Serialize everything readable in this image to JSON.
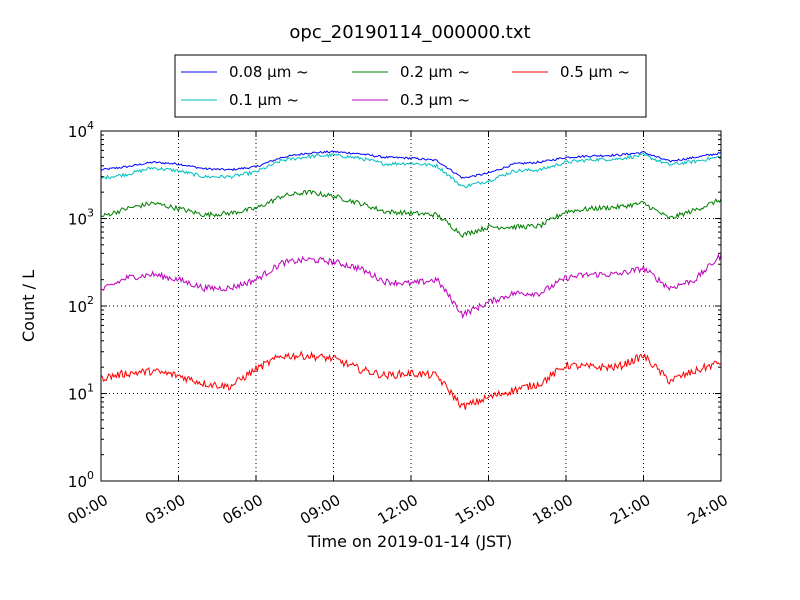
{
  "chart_data": {
    "type": "line",
    "title": "opc_20190114_000000.txt",
    "xlabel": "Time on 2019-01-14 (JST)",
    "ylabel": "Count / L",
    "y_scale": "log",
    "ylim": [
      1,
      10000
    ],
    "xlim": [
      "00:00",
      "24:00"
    ],
    "x_ticks": [
      "00:00",
      "03:00",
      "06:00",
      "09:00",
      "12:00",
      "15:00",
      "18:00",
      "21:00",
      "24:00"
    ],
    "y_ticks": [
      {
        "value": 1,
        "base": "10",
        "exp": "0"
      },
      {
        "value": 10,
        "base": "10",
        "exp": "1"
      },
      {
        "value": 100,
        "base": "10",
        "exp": "2"
      },
      {
        "value": 1000,
        "base": "10",
        "exp": "3"
      },
      {
        "value": 10000,
        "base": "10",
        "exp": "4"
      }
    ],
    "grid": true,
    "legend": {
      "placement": "top-center",
      "columns": 3
    },
    "x": [
      "00:00",
      "01:00",
      "02:00",
      "03:00",
      "04:00",
      "05:00",
      "06:00",
      "07:00",
      "08:00",
      "09:00",
      "10:00",
      "11:00",
      "12:00",
      "13:00",
      "14:00",
      "15:00",
      "16:00",
      "17:00",
      "18:00",
      "19:00",
      "20:00",
      "21:00",
      "22:00",
      "23:00",
      "24:00"
    ],
    "series": [
      {
        "name": "0.08 μm ~",
        "color": "#0000ff",
        "values": [
          3600,
          3900,
          4400,
          4200,
          3700,
          3600,
          3900,
          5000,
          5600,
          5800,
          5500,
          5000,
          4900,
          4600,
          2900,
          3300,
          4200,
          4400,
          5000,
          5200,
          5300,
          5700,
          4500,
          5000,
          5600
        ]
      },
      {
        "name": "0.1 μm ~",
        "color": "#00bfbf",
        "values": [
          2900,
          3200,
          3800,
          3500,
          3000,
          3000,
          3400,
          4600,
          5100,
          5300,
          4900,
          4200,
          4300,
          4000,
          2300,
          2700,
          3500,
          3600,
          4400,
          4700,
          4800,
          5300,
          4100,
          4500,
          5100
        ]
      },
      {
        "name": "0.2 μm ~",
        "color": "#008000",
        "values": [
          1050,
          1300,
          1500,
          1300,
          1100,
          1150,
          1300,
          1800,
          2000,
          1800,
          1500,
          1200,
          1150,
          1100,
          650,
          800,
          800,
          820,
          1200,
          1300,
          1350,
          1500,
          1000,
          1250,
          1650
        ]
      },
      {
        "name": "0.3 μm ~",
        "color": "#bf00bf",
        "values": [
          150,
          210,
          230,
          200,
          160,
          160,
          200,
          310,
          340,
          320,
          270,
          190,
          180,
          200,
          80,
          110,
          140,
          140,
          210,
          230,
          230,
          270,
          160,
          200,
          380
        ]
      },
      {
        "name": "0.5 μm ~",
        "color": "#ff0000",
        "values": [
          15,
          17,
          18,
          16,
          13,
          12,
          19,
          27,
          27,
          25,
          19,
          16,
          17,
          16,
          7,
          9,
          11,
          13,
          21,
          20,
          20,
          27,
          14,
          18,
          23
        ]
      }
    ]
  }
}
